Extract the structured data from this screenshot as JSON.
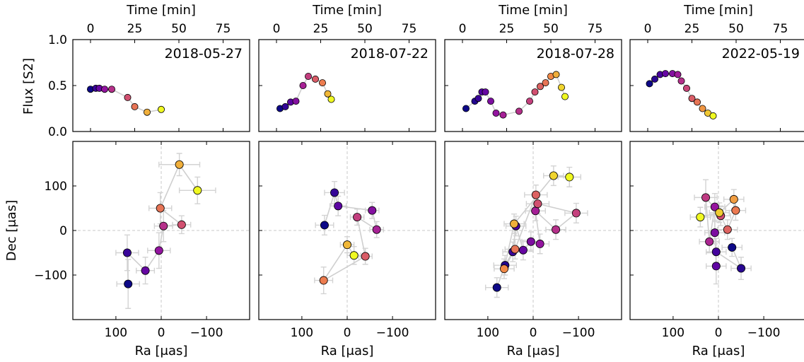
{
  "chart_data": [
    {
      "type": "scatter",
      "panel": "light-curve",
      "date": "2018-05-27",
      "xlabel": "Time [min]",
      "ylabel": "Flux [S2]",
      "xlim": [
        -10,
        90
      ],
      "ylim": [
        0,
        1.0
      ],
      "xticks": [
        0,
        25,
        50,
        75
      ],
      "yticks": [
        0.0,
        0.5,
        1.0
      ],
      "ytick_labels": [
        "0.0",
        "0.5",
        "1.0"
      ],
      "x": [
        0,
        3,
        5,
        8,
        12,
        21,
        25,
        32,
        40
      ],
      "y": [
        0.46,
        0.47,
        0.47,
        0.46,
        0.46,
        0.37,
        0.27,
        0.21,
        0.24
      ]
    },
    {
      "type": "scatter",
      "panel": "light-curve",
      "date": "2018-07-22",
      "xlabel": "Time [min]",
      "xlim": [
        -10,
        90
      ],
      "ylim": [
        0,
        1.0
      ],
      "xticks": [
        0,
        25,
        50,
        75
      ],
      "yticks": [
        0.0,
        0.5,
        1.0
      ],
      "x": [
        2,
        5,
        8,
        11,
        15,
        18,
        22,
        26,
        29,
        31
      ],
      "y": [
        0.25,
        0.27,
        0.32,
        0.33,
        0.5,
        0.6,
        0.57,
        0.53,
        0.41,
        0.35
      ]
    },
    {
      "type": "scatter",
      "panel": "light-curve",
      "date": "2018-07-28",
      "xlabel": "Time [min]",
      "xlim": [
        -10,
        90
      ],
      "ylim": [
        0,
        1.0
      ],
      "xticks": [
        0,
        25,
        50,
        75
      ],
      "yticks": [
        0.0,
        0.5,
        1.0
      ],
      "x": [
        2,
        7,
        9,
        11,
        13,
        16,
        19,
        23,
        32,
        38,
        41,
        44,
        47,
        50,
        53,
        56,
        58
      ],
      "y": [
        0.25,
        0.33,
        0.36,
        0.43,
        0.43,
        0.33,
        0.2,
        0.18,
        0.22,
        0.33,
        0.43,
        0.49,
        0.53,
        0.6,
        0.62,
        0.48,
        0.38
      ]
    },
    {
      "type": "scatter",
      "panel": "light-curve",
      "date": "2022-05-19",
      "xlabel": "Time [min]",
      "xlim": [
        -10,
        90
      ],
      "ylim": [
        0,
        1.0
      ],
      "xticks": [
        0,
        25,
        50,
        75
      ],
      "yticks": [
        0.0,
        0.5,
        1.0
      ],
      "x": [
        1,
        4,
        7,
        10,
        14,
        17,
        19,
        22,
        25,
        28,
        31,
        34,
        37
      ],
      "y": [
        0.52,
        0.57,
        0.62,
        0.63,
        0.63,
        0.62,
        0.55,
        0.47,
        0.36,
        0.32,
        0.25,
        0.2,
        0.17
      ]
    },
    {
      "type": "scatter",
      "panel": "astrometry",
      "xlabel": "Ra [μas]",
      "ylabel": "Dec [μas]",
      "xlim": [
        195,
        -195
      ],
      "ylim": [
        -200,
        200
      ],
      "xticks": [
        100,
        0,
        -100
      ],
      "xtick_labels": [
        "100",
        "0",
        "−100"
      ],
      "yticks": [
        -100,
        0,
        100
      ],
      "ytick_labels": [
        "−100",
        "0",
        "100"
      ],
      "x": [
        73,
        75,
        35,
        5,
        -5,
        -45,
        2,
        -40,
        -80
      ],
      "y": [
        -120,
        -50,
        -90,
        -45,
        10,
        13,
        50,
        148,
        90
      ],
      "xerr": [
        25,
        25,
        20,
        25,
        20,
        20,
        25,
        45,
        40
      ],
      "yerr": [
        55,
        40,
        30,
        40,
        35,
        20,
        35,
        25,
        30
      ]
    },
    {
      "type": "scatter",
      "panel": "astrometry",
      "xlabel": "Ra [μas]",
      "xlim": [
        195,
        -195
      ],
      "ylim": [
        -200,
        200
      ],
      "xticks": [
        100,
        0,
        -100
      ],
      "xtick_labels": [
        "100",
        "0",
        "−100"
      ],
      "yticks": [
        -100,
        0,
        100
      ],
      "x": [
        50,
        28,
        20,
        -55,
        -65,
        -22,
        -40,
        52,
        0,
        -15
      ],
      "y": [
        12,
        85,
        55,
        45,
        2,
        30,
        -58,
        -112,
        -32,
        -56
      ],
      "xerr": [
        20,
        22,
        18,
        15,
        15,
        15,
        15,
        20,
        15,
        15
      ],
      "yerr": [
        22,
        25,
        22,
        18,
        18,
        18,
        18,
        30,
        18,
        20
      ]
    },
    {
      "type": "scatter",
      "panel": "astrometry",
      "xlabel": "Ra [μas]",
      "xlim": [
        195,
        -195
      ],
      "ylim": [
        -200,
        200
      ],
      "xticks": [
        100,
        0,
        -100
      ],
      "xtick_labels": [
        "100",
        "0",
        "−100"
      ],
      "yticks": [
        -100,
        0,
        100
      ],
      "x": [
        80,
        62,
        45,
        38,
        22,
        5,
        -15,
        -5,
        -50,
        -95,
        -10,
        -6,
        40,
        64,
        42,
        -45,
        -80
      ],
      "y": [
        -128,
        -78,
        -48,
        10,
        -44,
        -25,
        -30,
        44,
        2,
        39,
        60,
        80,
        -42,
        -86,
        15,
        123,
        120
      ],
      "xerr": [
        25,
        25,
        22,
        22,
        22,
        20,
        20,
        22,
        22,
        25,
        25,
        25,
        22,
        22,
        22,
        22,
        25
      ],
      "yerr": [
        22,
        22,
        22,
        22,
        22,
        22,
        22,
        22,
        22,
        22,
        22,
        22,
        22,
        22,
        22,
        22,
        22
      ]
    },
    {
      "type": "scatter",
      "panel": "astrometry",
      "xlabel": "Ra [μas]",
      "xlim": [
        195,
        -195
      ],
      "ylim": [
        -200,
        200
      ],
      "xticks": [
        100,
        0,
        -100
      ],
      "xtick_labels": [
        "100",
        "0",
        "−100"
      ],
      "yticks": [
        -100,
        0,
        100
      ],
      "x": [
        -30,
        -50,
        5,
        5,
        8,
        8,
        20,
        28,
        -5,
        -20,
        -38,
        -34,
        -2,
        40
      ],
      "y": [
        -38,
        -85,
        -48,
        -80,
        -5,
        53,
        -25,
        74,
        33,
        2,
        45,
        70,
        40,
        30
      ],
      "xerr": [
        22,
        22,
        22,
        22,
        22,
        22,
        22,
        25,
        22,
        22,
        22,
        22,
        22,
        22
      ],
      "yerr": [
        20,
        25,
        30,
        40,
        25,
        30,
        25,
        40,
        22,
        22,
        22,
        22,
        22,
        22
      ]
    }
  ]
}
